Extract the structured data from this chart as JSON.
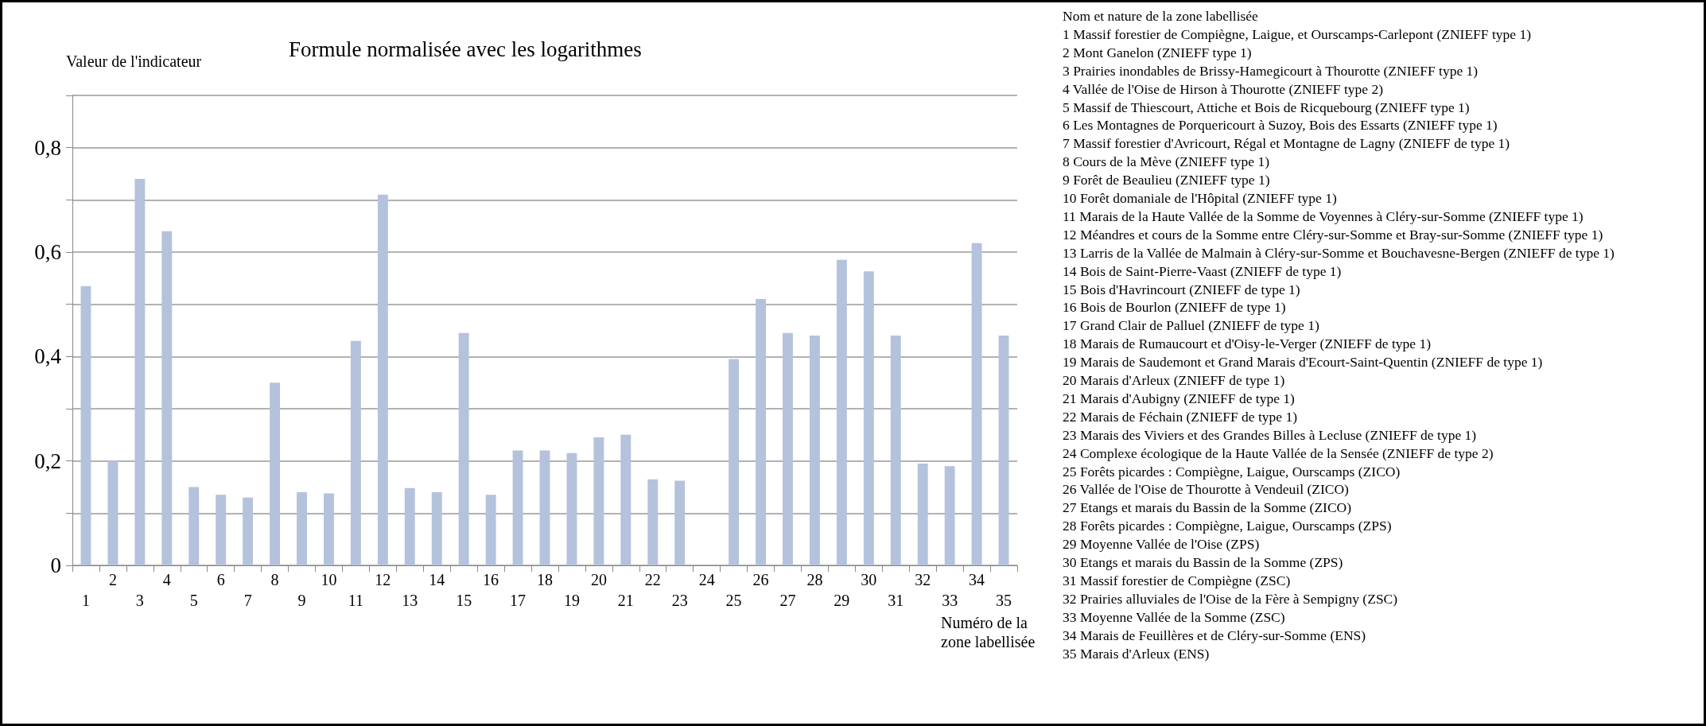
{
  "chart_data": {
    "type": "bar",
    "title": "Formule normalisée avec les logarithmes",
    "ylabel": "Valeur de l'indicateur",
    "xlabel": "Numéro de la zone labellisée",
    "categories": [
      "1",
      "2",
      "3",
      "4",
      "5",
      "6",
      "7",
      "8",
      "9",
      "10",
      "11",
      "12",
      "13",
      "14",
      "15",
      "16",
      "17",
      "18",
      "19",
      "20",
      "21",
      "22",
      "23",
      "24",
      "25",
      "26",
      "27",
      "28",
      "29",
      "30",
      "31",
      "32",
      "33",
      "34",
      "35"
    ],
    "values": [
      0.535,
      0.2,
      0.74,
      0.64,
      0.15,
      0.135,
      0.13,
      0.35,
      0.14,
      0.138,
      0.43,
      0.71,
      0.148,
      0.14,
      0.445,
      0.135,
      0.22,
      0.22,
      0.215,
      0.245,
      0.25,
      0.165,
      0.162,
      null,
      0.395,
      0.51,
      0.445,
      0.44,
      0.585,
      0.563,
      0.44,
      0.195,
      0.19,
      0.617,
      0.44
    ],
    "color": "#b4c2dc",
    "ylim": [
      0,
      0.9
    ],
    "yticks": [
      {
        "value": 0,
        "label": "0"
      },
      {
        "value": 0.1,
        "label": null
      },
      {
        "value": 0.2,
        "label": "0,2"
      },
      {
        "value": 0.3,
        "label": null
      },
      {
        "value": 0.4,
        "label": "0,4"
      },
      {
        "value": 0.5,
        "label": null
      },
      {
        "value": 0.6,
        "label": "0,6"
      },
      {
        "value": 0.7,
        "label": null
      },
      {
        "value": 0.8,
        "label": "0,8"
      },
      {
        "value": 0.9,
        "label": null
      }
    ],
    "grid": "y",
    "annotations": [
      "Nom et nature de la zone labellisée",
      "1 Massif forestier de Compiègne, Laigue, et Ourscamps-Carlepont (ZNIEFF type 1)",
      "2 Mont Ganelon (ZNIEFF type 1)",
      "3 Prairies inondables de Brissy-Hamegicourt à Thourotte (ZNIEFF type 1)",
      "4 Vallée de l'Oise de Hirson à Thourotte (ZNIEFF type 2)",
      "5 Massif de Thiescourt, Attiche et Bois de Ricquebourg (ZNIEFF type 1)",
      "6 Les Montagnes de Porquericourt à Suzoy, Bois des Essarts (ZNIEFF type 1)",
      "7 Massif forestier d'Avricourt, Régal et Montagne de Lagny (ZNIEFF de type 1)",
      "8 Cours de la Mève (ZNIEFF type 1)",
      "9 Forêt de Beaulieu (ZNIEFF type 1)",
      "10 Forêt domaniale de l'Hôpital (ZNIEFF type 1)",
      "11 Marais de la Haute Vallée de la Somme de Voyennes à Cléry-sur-Somme (ZNIEFF type 1)",
      "12 Méandres et cours de la Somme entre Cléry-sur-Somme et Bray-sur-Somme (ZNIEFF type 1)",
      "13 Larris de la Vallée de Malmain à Cléry-sur-Somme et Bouchavesne-Bergen (ZNIEFF de type 1)",
      "14 Bois de Saint-Pierre-Vaast (ZNIEFF de type 1)",
      "15 Bois d'Havrincourt (ZNIEFF de type 1)",
      "16 Bois de Bourlon (ZNIEFF de type 1)",
      "17 Grand Clair de Palluel (ZNIEFF de type 1)",
      "18 Marais de Rumaucourt et d'Oisy-le-Verger (ZNIEFF de type 1)",
      "19 Marais de Saudemont et Grand Marais d'Ecourt-Saint-Quentin (ZNIEFF de type 1)",
      "20 Marais d'Arleux (ZNIEFF de type 1)",
      "21 Marais d'Aubigny (ZNIEFF de type 1)",
      "22 Marais de Féchain (ZNIEFF de type 1)",
      "23 Marais des Viviers et des Grandes Billes à Lecluse (ZNIEFF de type 1)",
      "24 Complexe écologique de la Haute Vallée de la Sensée (ZNIEFF de type 2)",
      "25 Forêts picardes : Compiègne, Laigue, Ourscamps (ZICO)",
      "26 Vallée de l'Oise de Thourotte à Vendeuil (ZICO)",
      "27 Etangs et marais du Bassin de la Somme (ZICO)",
      "28 Forêts picardes : Compiègne, Laigue, Ourscamps (ZPS)",
      "29 Moyenne Vallée de l'Oise (ZPS)",
      "30 Etangs et marais du Bassin de la Somme (ZPS)",
      "31 Massif forestier de Compiègne (ZSC)",
      "32 Prairies alluviales de l'Oise de la Fère à Sempigny (ZSC)",
      "33 Moyenne Vallée de la Somme (ZSC)",
      "34 Marais de Feuillères et de Cléry-sur-Somme (ENS)",
      "35 Marais d'Arleux (ENS)"
    ]
  }
}
